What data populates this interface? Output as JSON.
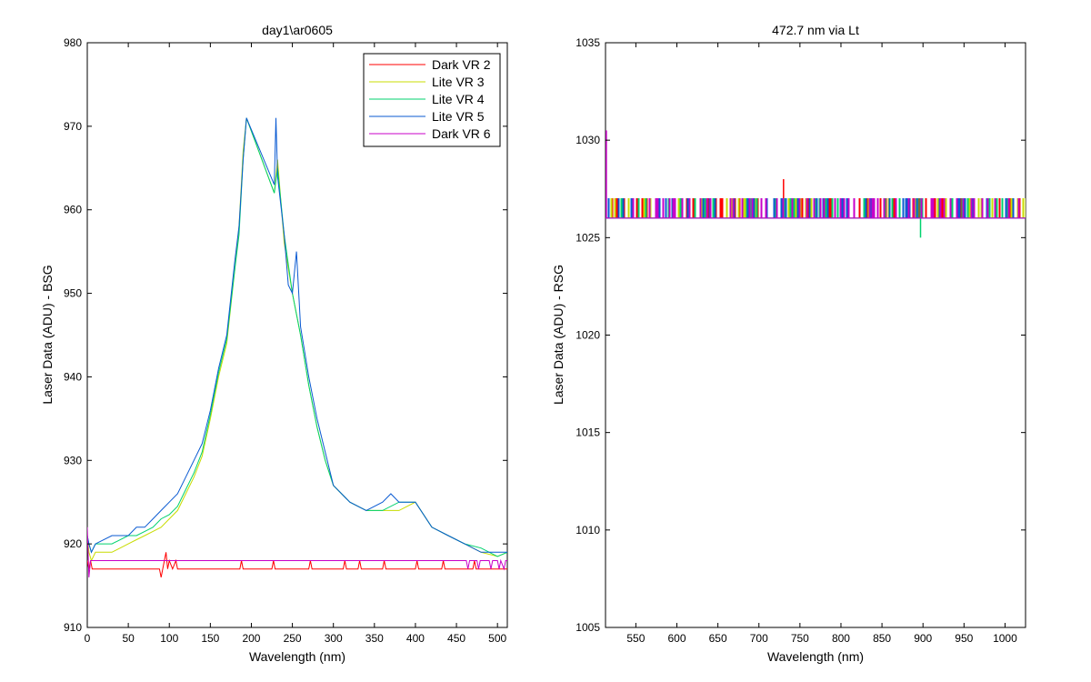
{
  "chart_data": [
    {
      "type": "line",
      "title": "day1\\ar0605",
      "xlabel": "Wavelength (nm)",
      "ylabel": "Laser Data (ADU) - BSG",
      "xlim": [
        0,
        512
      ],
      "ylim": [
        910,
        980
      ],
      "xticks": [
        0,
        50,
        100,
        150,
        200,
        250,
        300,
        350,
        400,
        450,
        500
      ],
      "yticks": [
        910,
        920,
        930,
        940,
        950,
        960,
        970,
        980
      ],
      "grid": false,
      "legend": "top-right",
      "series": [
        {
          "name": "Dark VR 2",
          "color": "#ff0000",
          "x": [
            0,
            2,
            4,
            6,
            20,
            50,
            88,
            90,
            92,
            94,
            96,
            98,
            100,
            104,
            108,
            110,
            130,
            186,
            188,
            190,
            225,
            227,
            229,
            270,
            272,
            274,
            312,
            314,
            316,
            330,
            332,
            334,
            360,
            362,
            364,
            400,
            402,
            404,
            432,
            434,
            436,
            470,
            472,
            474,
            512
          ],
          "y": [
            918,
            917,
            918,
            917,
            917,
            917,
            917,
            916,
            917,
            918,
            919,
            917,
            918,
            917,
            918,
            917,
            917,
            917,
            918,
            917,
            917,
            918,
            917,
            917,
            918,
            917,
            917,
            918,
            917,
            917,
            918,
            917,
            917,
            918,
            917,
            917,
            918,
            917,
            917,
            918,
            917,
            917,
            918,
            917,
            917
          ]
        },
        {
          "name": "Lite VR 3",
          "color": "#c8dc00",
          "x": [
            0,
            2,
            5,
            10,
            30,
            50,
            60,
            70,
            80,
            90,
            100,
            110,
            120,
            130,
            140,
            150,
            160,
            170,
            180,
            185,
            190,
            194,
            228,
            232,
            240,
            250,
            260,
            270,
            280,
            290,
            300,
            320,
            340,
            360,
            380,
            400,
            420,
            440,
            460,
            480,
            500,
            512
          ],
          "y": [
            921,
            919,
            918,
            919,
            919,
            920,
            920.5,
            921,
            921.5,
            922,
            923,
            924,
            926,
            928,
            930.5,
            935,
            940,
            944,
            953,
            958,
            967,
            971,
            962,
            966,
            956,
            950,
            945,
            939,
            934,
            930,
            927,
            925,
            924,
            924,
            924,
            925,
            922,
            921,
            920,
            919,
            918.5,
            919
          ]
        },
        {
          "name": "Lite VR 4",
          "color": "#00d26e",
          "x": [
            0,
            2,
            5,
            10,
            30,
            50,
            60,
            70,
            80,
            90,
            100,
            110,
            120,
            130,
            140,
            150,
            160,
            170,
            180,
            185,
            190,
            194,
            228,
            232,
            240,
            250,
            260,
            270,
            280,
            290,
            300,
            320,
            340,
            360,
            380,
            400,
            420,
            440,
            460,
            480,
            500,
            512
          ],
          "y": [
            921,
            920,
            919,
            920,
            920,
            921,
            921,
            921.5,
            922,
            923,
            923.5,
            924.5,
            926.5,
            928.5,
            931,
            935.5,
            940.5,
            944.5,
            953,
            957,
            966,
            971,
            962,
            965,
            957,
            950,
            945,
            939,
            934,
            930,
            927,
            925,
            924,
            924,
            925,
            925,
            922,
            921,
            920,
            919.5,
            918.5,
            919
          ]
        },
        {
          "name": "Lite VR 5",
          "color": "#0a5ad2",
          "x": [
            0,
            2,
            5,
            10,
            30,
            50,
            60,
            70,
            80,
            90,
            100,
            110,
            120,
            130,
            140,
            150,
            160,
            170,
            180,
            185,
            190,
            194,
            228,
            230,
            232,
            240,
            245,
            250,
            255,
            260,
            270,
            280,
            290,
            300,
            320,
            340,
            360,
            370,
            380,
            400,
            420,
            440,
            460,
            480,
            500,
            512
          ],
          "y": [
            921,
            920,
            919,
            920,
            921,
            921,
            922,
            922,
            923,
            924,
            925,
            926,
            928,
            930,
            932,
            936,
            941,
            945,
            954,
            958,
            966,
            971,
            963,
            971,
            964,
            957,
            951,
            950,
            955,
            946,
            940,
            935,
            931,
            927,
            925,
            924,
            925,
            926,
            925,
            925,
            922,
            921,
            920,
            919,
            919,
            919
          ]
        },
        {
          "name": "Dark VR 6",
          "color": "#c800c8",
          "x": [
            0,
            2,
            4,
            6,
            10,
            50,
            100,
            150,
            200,
            250,
            300,
            350,
            400,
            450,
            462,
            464,
            466,
            475,
            477,
            479,
            490,
            492,
            494,
            500,
            502,
            504,
            508,
            510,
            512
          ],
          "y": [
            922,
            916,
            918,
            918,
            918,
            918,
            918,
            918,
            918,
            918,
            918,
            918,
            918,
            918,
            918,
            917,
            918,
            918,
            917,
            918,
            918,
            917,
            918,
            918,
            917,
            918,
            917,
            918,
            918
          ]
        }
      ]
    },
    {
      "type": "line",
      "title": "472.7 nm via Lt",
      "xlabel": "Wavelength (nm)",
      "ylabel": "Laser Data (ADU) - RSG",
      "xlim": [
        513,
        1025
      ],
      "ylim": [
        1005,
        1035
      ],
      "xticks": [
        550,
        600,
        650,
        700,
        750,
        800,
        850,
        900,
        950,
        1000
      ],
      "yticks": [
        1005,
        1010,
        1015,
        1020,
        1025,
        1030,
        1035
      ],
      "grid": false,
      "series": [
        {
          "name": "Dark VR 2",
          "color": "#ff0000",
          "baseline": 1026,
          "level": 1027,
          "spikes": [
            {
              "x": 730,
              "y": 1028
            }
          ]
        },
        {
          "name": "Lite VR 3",
          "color": "#c8dc00",
          "baseline": 1026,
          "level": 1027
        },
        {
          "name": "Lite VR 4",
          "color": "#00d26e",
          "baseline": 1026,
          "level": 1027,
          "spikes": [
            {
              "x": 897,
              "y": 1025
            }
          ]
        },
        {
          "name": "Lite VR 5",
          "color": "#0a5ad2",
          "baseline": 1026,
          "level": 1027
        },
        {
          "name": "Dark VR 6",
          "color": "#c800c8",
          "baseline": 1026,
          "level": 1027,
          "spikes": [
            {
              "x": 514,
              "y": 1030.5
            }
          ]
        }
      ]
    }
  ]
}
